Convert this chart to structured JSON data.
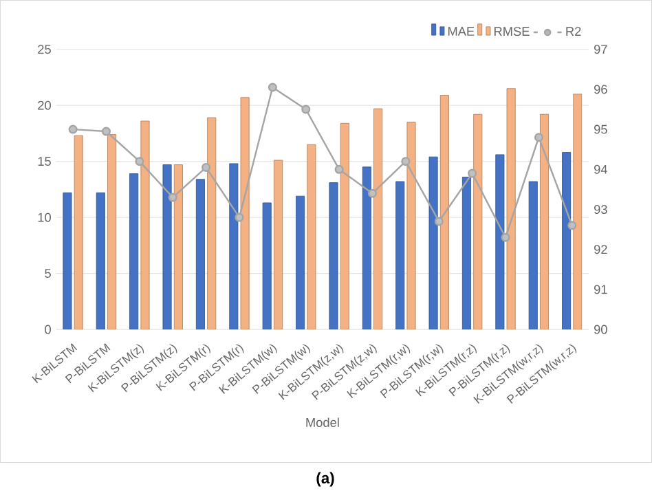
{
  "chart_data": {
    "type": "bar",
    "xlabel": "Model",
    "categories": [
      "K-BiLSTM",
      "P-BiLSTM",
      "K-BiLSTM(z)",
      "P-BiLSTM(z)",
      "K-BiLSTM(r)",
      "P-BiLSTM(r)",
      "K-BiLSTM(w)",
      "P-BiLSTM(w)",
      "K-BiLSTM(z,w)",
      "P-BiLSTM(z,w)",
      "K-BiLSTM(r,w)",
      "P-BiLSTM(r,w)",
      "K-BiLSTM(r,z)",
      "P-BiLSTM(r,z)",
      "K-BiLSTM(w,r,z)",
      "P-BiLSTM(w,r,z)"
    ],
    "series": [
      {
        "name": "MAE",
        "color": "#4472c4",
        "values": [
          12.2,
          12.2,
          13.9,
          14.7,
          13.4,
          14.8,
          11.3,
          11.9,
          13.1,
          14.5,
          13.2,
          15.4,
          13.6,
          15.6,
          13.2,
          15.8
        ]
      },
      {
        "name": "RMSE",
        "color": "#f4b183",
        "values": [
          17.3,
          17.4,
          18.6,
          14.7,
          18.9,
          20.7,
          15.1,
          16.5,
          18.4,
          19.7,
          18.5,
          20.9,
          19.2,
          21.5,
          19.2,
          21.0
        ]
      },
      {
        "name": "R2",
        "type": "line",
        "axis": "y2",
        "color": "#a5a5a5",
        "values": [
          95.0,
          94.95,
          94.2,
          93.3,
          94.05,
          92.8,
          96.05,
          95.5,
          94.0,
          93.4,
          94.2,
          92.7,
          93.9,
          92.3,
          94.8,
          92.6
        ]
      }
    ],
    "ylim": [
      0,
      25
    ],
    "yticks": [
      0,
      5,
      10,
      15,
      20,
      25
    ],
    "y2lim": [
      90,
      97
    ],
    "y2ticks": [
      90,
      91,
      92,
      93,
      94,
      95,
      96,
      97
    ],
    "grid": "y",
    "legend": "top right",
    "marker": "circle",
    "annotations": [
      "(a)"
    ]
  }
}
